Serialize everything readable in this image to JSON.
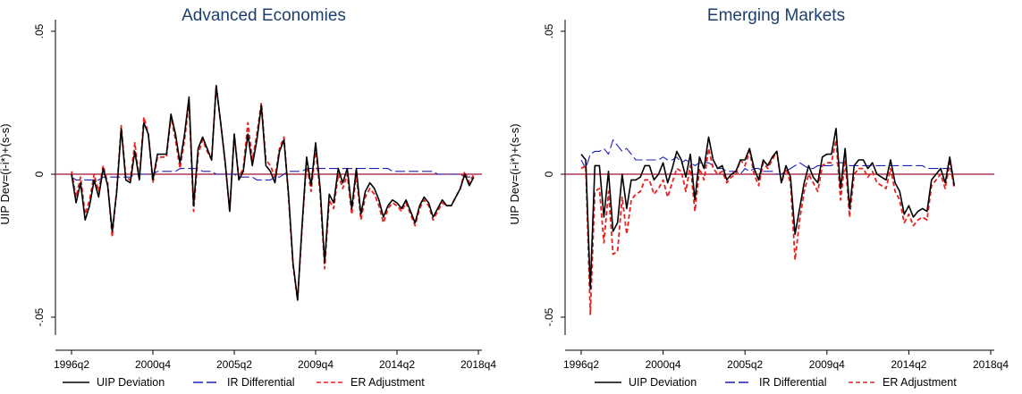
{
  "chart_data": [
    {
      "type": "line",
      "title": "Advanced Economies",
      "ylabel": "UIP Dev=(i-i*)+(s-s)",
      "xlabel": "",
      "x_start": "1996q2",
      "x_ticks": [
        "1996q2",
        "2000q4",
        "2005q2",
        "2009q4",
        "2014q2",
        "2018q4"
      ],
      "y_ticks": [
        "-.05",
        "0",
        ".05"
      ],
      "ylim": [
        -0.065,
        0.05
      ],
      "reference_line": 0,
      "grid": false,
      "legend_position": "bottom",
      "series": [
        {
          "name": "UIP Deviation",
          "color": "#000000",
          "dash": "solid",
          "values": [
            -0.0,
            -0.01,
            -0.003,
            -0.016,
            -0.011,
            -0.002,
            -0.008,
            0.002,
            -0.004,
            -0.02,
            -0.006,
            0.016,
            -0.002,
            -0.003,
            0.008,
            -0.002,
            0.018,
            0.014,
            -0.002,
            0.007,
            0.007,
            0.007,
            0.021,
            0.014,
            0.004,
            0.014,
            0.027,
            -0.011,
            0.009,
            0.013,
            0.009,
            0.005,
            0.031,
            0.018,
            0.004,
            -0.013,
            0.014,
            -0.002,
            0.001,
            0.014,
            0.003,
            0.012,
            0.024,
            0.003,
            0.001,
            -0.003,
            0.008,
            0.012,
            -0.007,
            -0.031,
            -0.044,
            -0.018,
            0.006,
            -0.004,
            0.011,
            -0.005,
            -0.031,
            -0.007,
            -0.01,
            0.002,
            -0.003,
            0.002,
            -0.012,
            0.002,
            -0.014,
            -0.006,
            -0.003,
            -0.005,
            -0.009,
            -0.015,
            -0.011,
            -0.009,
            -0.01,
            -0.012,
            -0.009,
            -0.013,
            -0.017,
            -0.011,
            -0.008,
            -0.01,
            -0.015,
            -0.012,
            -0.009,
            -0.011,
            -0.011,
            -0.008,
            -0.005,
            0.0,
            -0.004,
            -0.001
          ]
        },
        {
          "name": "IR Differential",
          "color": "#1f1fbf",
          "dash": "long-dash",
          "values": [
            -0.001,
            -0.002,
            -0.002,
            -0.002,
            -0.002,
            -0.002,
            -0.002,
            -0.001,
            -0.001,
            -0.001,
            -0.001,
            -0.001,
            -0.001,
            -0.001,
            0.0,
            0.0,
            0.0,
            0.0,
            0.0,
            0.001,
            0.001,
            0.001,
            0.001,
            0.001,
            0.002,
            0.002,
            0.002,
            0.002,
            0.002,
            0.001,
            0.001,
            0.001,
            0.0,
            0.0,
            0.0,
            0.0,
            0.0,
            -0.001,
            -0.001,
            -0.001,
            -0.001,
            -0.002,
            -0.002,
            -0.002,
            -0.002,
            -0.001,
            -0.001,
            0.0,
            0.001,
            0.001,
            0.001,
            0.001,
            0.002,
            0.002,
            0.002,
            0.002,
            0.002,
            0.002,
            0.002,
            0.002,
            0.002,
            0.002,
            0.002,
            0.002,
            0.002,
            0.002,
            0.002,
            0.002,
            0.002,
            0.002,
            0.002,
            0.001,
            0.001,
            0.001,
            0.001,
            0.001,
            0.001,
            0.001,
            0.001,
            0.001,
            0.001,
            0.0,
            0.0,
            0.0,
            0.0,
            0.0,
            0.0,
            -0.001,
            -0.001,
            -0.001
          ]
        },
        {
          "name": "ER Adjustment",
          "color": "#e8211f",
          "dash": "short-dash",
          "values": [
            0.001,
            -0.008,
            -0.001,
            -0.014,
            -0.009,
            0.0,
            -0.006,
            0.003,
            -0.003,
            -0.022,
            -0.005,
            0.017,
            -0.001,
            -0.002,
            0.011,
            -0.002,
            0.02,
            0.014,
            -0.003,
            0.006,
            0.006,
            0.006,
            0.02,
            0.012,
            0.002,
            0.012,
            0.025,
            -0.013,
            0.007,
            0.012,
            0.008,
            0.005,
            0.031,
            0.018,
            0.004,
            -0.013,
            0.014,
            -0.001,
            0.002,
            0.018,
            0.005,
            0.014,
            0.025,
            0.005,
            0.003,
            -0.001,
            0.009,
            0.013,
            -0.008,
            -0.032,
            -0.044,
            -0.019,
            0.004,
            -0.006,
            0.009,
            -0.007,
            -0.033,
            -0.009,
            -0.012,
            0.0,
            -0.005,
            0.0,
            -0.014,
            0.0,
            -0.016,
            -0.008,
            -0.005,
            -0.007,
            -0.011,
            -0.017,
            -0.012,
            -0.01,
            -0.011,
            -0.013,
            -0.01,
            -0.014,
            -0.018,
            -0.012,
            -0.009,
            -0.011,
            -0.016,
            -0.013,
            -0.01,
            -0.011,
            -0.011,
            -0.008,
            -0.005,
            0.001,
            -0.003,
            -0.0
          ]
        }
      ]
    },
    {
      "type": "line",
      "title": "Emerging Markets",
      "ylabel": "UIP Dev=(i-i*)+(s-s)",
      "xlabel": "",
      "x_start": "1996q2",
      "x_ticks": [
        "1996q2",
        "2000q4",
        "2005q2",
        "2009q4",
        "2014q2",
        "2018q4"
      ],
      "y_ticks": [
        "-.05",
        "0",
        ".05"
      ],
      "ylim": [
        -0.065,
        0.05
      ],
      "reference_line": 0,
      "grid": false,
      "legend_position": "bottom",
      "series": [
        {
          "name": "UIP Deviation",
          "color": "#000000",
          "dash": "solid",
          "values": [
            0.007,
            0.005,
            -0.04,
            0.003,
            0.003,
            -0.015,
            0.001,
            -0.02,
            -0.017,
            0.0,
            -0.012,
            -0.002,
            -0.002,
            -0.001,
            0.003,
            0.003,
            -0.002,
            0.0,
            0.004,
            -0.003,
            0.002,
            0.008,
            0.005,
            -0.001,
            0.007,
            -0.009,
            0.006,
            0.002,
            0.013,
            0.005,
            0.002,
            0.003,
            -0.002,
            0.0,
            0.001,
            0.005,
            0.005,
            0.009,
            0.002,
            -0.002,
            0.005,
            0.003,
            0.006,
            0.008,
            -0.003,
            0.003,
            -0.001,
            -0.021,
            -0.012,
            -0.003,
            0.003,
            -0.001,
            -0.003,
            0.006,
            0.007,
            0.007,
            0.016,
            -0.005,
            0.009,
            -0.012,
            0.003,
            0.005,
            0.005,
            0.002,
            0.004,
            0.0,
            -0.001,
            -0.002,
            0.005,
            -0.003,
            -0.006,
            -0.014,
            -0.011,
            -0.015,
            -0.013,
            -0.012,
            -0.013,
            -0.002,
            0.0,
            0.002,
            -0.003,
            0.006,
            -0.004
          ]
        },
        {
          "name": "IR Differential",
          "color": "#1f1fbf",
          "dash": "long-dash",
          "values": [
            0.005,
            0.002,
            0.007,
            0.008,
            0.008,
            0.009,
            0.007,
            0.012,
            0.01,
            0.008,
            0.009,
            0.007,
            0.005,
            0.005,
            0.005,
            0.005,
            0.005,
            0.005,
            0.006,
            0.005,
            0.005,
            0.006,
            0.004,
            0.005,
            0.004,
            0.003,
            0.004,
            0.004,
            0.004,
            0.003,
            0.002,
            0.002,
            0.001,
            0.001,
            0.001,
            0.0,
            0.002,
            0.001,
            0.002,
            0.002,
            0.001,
            0.001,
            0.001,
            0.0,
            0.0,
            0.001,
            0.002,
            0.003,
            0.004,
            0.003,
            0.002,
            0.002,
            0.003,
            0.003,
            0.003,
            0.003,
            0.004,
            0.004,
            0.004,
            0.003,
            0.003,
            0.003,
            0.003,
            0.003,
            0.003,
            0.003,
            0.003,
            0.003,
            0.003,
            0.003,
            0.003,
            0.003,
            0.003,
            0.003,
            0.003,
            0.003,
            0.002,
            0.002,
            0.002,
            0.002,
            0.002,
            0.002,
            0.001
          ]
        },
        {
          "name": "ER Adjustment",
          "color": "#e8211f",
          "dash": "short-dash",
          "values": [
            0.002,
            0.003,
            -0.049,
            -0.006,
            -0.005,
            -0.024,
            -0.006,
            -0.028,
            -0.027,
            -0.008,
            -0.021,
            -0.009,
            -0.007,
            -0.006,
            -0.002,
            -0.002,
            -0.007,
            -0.005,
            -0.002,
            -0.008,
            -0.003,
            0.002,
            0.001,
            -0.006,
            0.003,
            -0.013,
            0.002,
            -0.002,
            0.009,
            0.002,
            0.0,
            0.001,
            -0.003,
            -0.001,
            0.0,
            0.005,
            0.003,
            0.008,
            0.0,
            -0.004,
            0.004,
            0.002,
            0.005,
            0.008,
            -0.003,
            0.002,
            -0.003,
            -0.03,
            -0.016,
            -0.006,
            0.0,
            -0.003,
            -0.006,
            0.003,
            0.004,
            0.004,
            0.012,
            -0.009,
            0.005,
            -0.015,
            0.0,
            0.002,
            0.002,
            -0.001,
            0.001,
            -0.003,
            -0.004,
            -0.005,
            0.002,
            -0.006,
            -0.009,
            -0.017,
            -0.014,
            -0.018,
            -0.016,
            -0.015,
            -0.016,
            -0.004,
            -0.002,
            0.0,
            -0.005,
            0.004,
            -0.005
          ]
        }
      ]
    }
  ]
}
